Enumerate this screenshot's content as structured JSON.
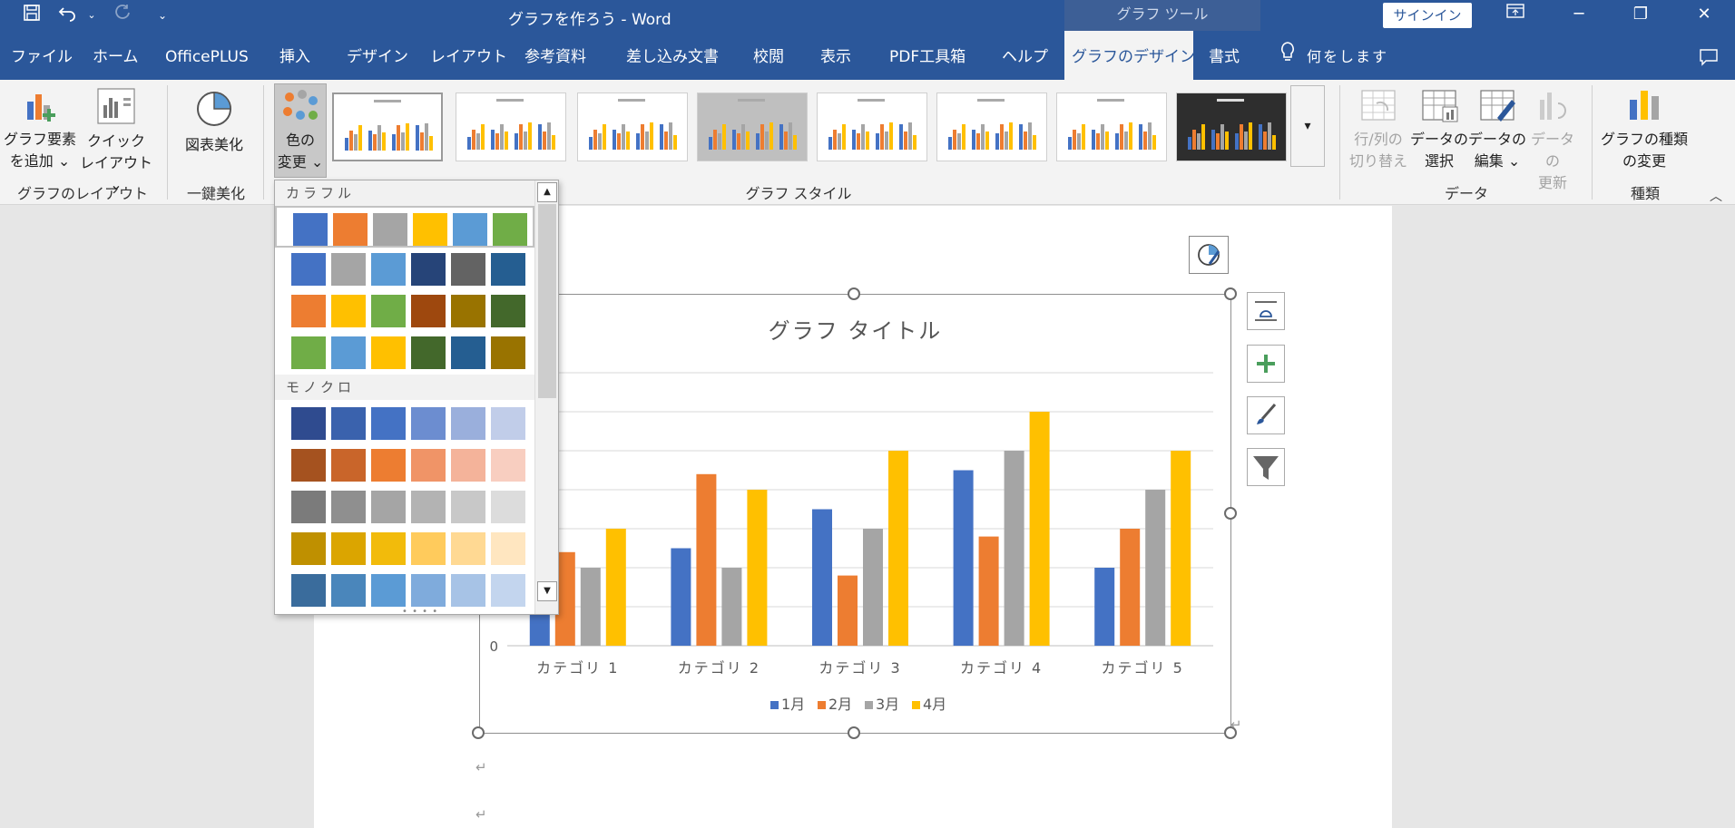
{
  "titlebar": {
    "title": "グラフを作ろう  -  Word",
    "tools_label": "グラフ ツール",
    "signin": "サインイン"
  },
  "tabs": [
    "ファイル",
    "ホーム",
    "OfficePLUS",
    "挿入",
    "デザイン",
    "レイアウト",
    "参考資料",
    "差し込み文書",
    "校閲",
    "表示",
    "PDF工具箱",
    "ヘルプ",
    "グラフのデザイン",
    "書式"
  ],
  "search_placeholder": "何をします",
  "ribbon": {
    "add_element": {
      "line1": "グラフ要素",
      "line2": "を追加 ⌄"
    },
    "quick_layout": {
      "line1": "クイック",
      "line2": "レイアウト ⌄"
    },
    "beautify": "図表美化",
    "change_color": {
      "line1": "色の",
      "line2": "変更 ⌄"
    },
    "switch_rowcol": {
      "line1": "行/列の",
      "line2": "切り替え"
    },
    "select_data": {
      "line1": "データの",
      "line2": "選択"
    },
    "edit_data": {
      "line1": "データの",
      "line2": "編集 ⌄"
    },
    "refresh_data": {
      "line1": "データの",
      "line2": "更新"
    },
    "change_type": {
      "line1": "グラフの種類",
      "line2": "の変更"
    },
    "groups": {
      "layout": "グラフのレイアウト",
      "beautify": "一鍵美化",
      "styles": "グラフ スタイル",
      "data": "データ",
      "type": "種類"
    }
  },
  "color_dropdown": {
    "colorful_header": "カラフル",
    "mono_header": "モノクロ",
    "colorful_rows": [
      [
        "#4472c4",
        "#ed7d31",
        "#a5a5a5",
        "#ffc000",
        "#5b9bd5",
        "#70ad47"
      ],
      [
        "#4472c4",
        "#a5a5a5",
        "#5b9bd5",
        "#264478",
        "#636363",
        "#255e91"
      ],
      [
        "#ed7d31",
        "#ffc000",
        "#70ad47",
        "#9e480e",
        "#997300",
        "#43682b"
      ],
      [
        "#70ad47",
        "#5b9bd5",
        "#ffc000",
        "#43682b",
        "#255e91",
        "#997300"
      ]
    ],
    "mono_rows": [
      [
        "#2f4b8f",
        "#3a62ad",
        "#4472c4",
        "#6c8dd0",
        "#9aafdc",
        "#c1cde9"
      ],
      [
        "#a5521f",
        "#c9652a",
        "#ed7d31",
        "#f09467",
        "#f4b39a",
        "#f8cec0"
      ],
      [
        "#7b7b7b",
        "#8f8f8f",
        "#a5a5a5",
        "#b3b3b3",
        "#c8c8c8",
        "#dcdcdc"
      ],
      [
        "#bf9000",
        "#dba500",
        "#f2bb0b",
        "#ffcb5c",
        "#ffd993",
        "#ffe6c0"
      ],
      [
        "#3a6c9c",
        "#4a86bb",
        "#5b9bd5",
        "#7fabdc",
        "#a7c3e6",
        "#c3d5ee"
      ]
    ]
  },
  "chart_data": {
    "type": "bar",
    "title": "グラフ タイトル",
    "categories": [
      "カテゴリ 1",
      "カテゴリ 2",
      "カテゴリ 3",
      "カテゴリ 4",
      "カテゴリ 5"
    ],
    "series": [
      {
        "name": "1月",
        "color": "#4472c4",
        "values": [
          1.5,
          2.5,
          3.5,
          4.5,
          2
        ]
      },
      {
        "name": "2月",
        "color": "#ed7d31",
        "values": [
          2.4,
          4.4,
          1.8,
          2.8,
          3
        ]
      },
      {
        "name": "3月",
        "color": "#a5a5a5",
        "values": [
          2,
          2,
          3,
          5,
          4
        ]
      },
      {
        "name": "4月",
        "color": "#ffc000",
        "values": [
          3,
          4,
          5,
          6,
          5
        ]
      }
    ],
    "y_tick_labels": [
      "0"
    ],
    "ylim": [
      0,
      7
    ],
    "grid": true,
    "legend": "bottom"
  }
}
